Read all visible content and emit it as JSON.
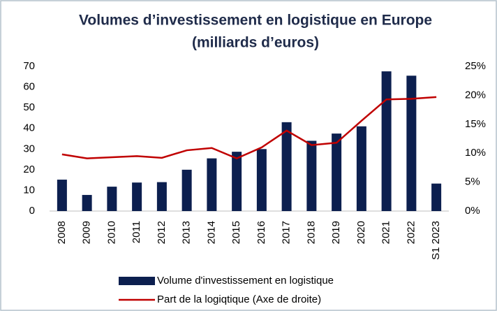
{
  "chart_data": {
    "type": "bar-line",
    "title": [
      "Volumes d’investissement en logistique en Europe",
      "(milliards d’euros)"
    ],
    "categories": [
      "2008",
      "2009",
      "2010",
      "2011",
      "2012",
      "2013",
      "2014",
      "2015",
      "2016",
      "2017",
      "2018",
      "2019",
      "2020",
      "2021",
      "2022",
      "S1 2023"
    ],
    "series": [
      {
        "name": "Volume d'investissement en logistique",
        "type": "bar",
        "color": "#0c1f4f",
        "values": [
          15.2,
          7.8,
          11.8,
          13.8,
          14,
          20,
          25.5,
          28.7,
          30,
          43,
          34,
          37.5,
          41,
          67.6,
          65.5,
          13.3
        ]
      },
      {
        "name": "Part de la logiqtique (Axe de droite)",
        "type": "line",
        "axis": "y2",
        "color": "#c00000",
        "values": [
          9.8,
          9.1,
          9.3,
          9.5,
          9.2,
          10.5,
          10.9,
          9.1,
          11,
          13.9,
          11.4,
          11.8,
          15.6,
          19.3,
          19.4,
          19.7
        ]
      }
    ],
    "ylim": [
      0,
      70
    ],
    "yticks": [
      0,
      10,
      20,
      30,
      40,
      50,
      60,
      70
    ],
    "y2lim": [
      0,
      25
    ],
    "y2ticks": [
      {
        "value": 0,
        "label": "0%"
      },
      {
        "value": 5,
        "label": "5%"
      },
      {
        "value": 10,
        "label": "10%"
      },
      {
        "value": 15,
        "label": "15%"
      },
      {
        "value": 20,
        "label": "20%"
      },
      {
        "value": 25,
        "label": "25%"
      }
    ],
    "grid": false,
    "legend": "bottom"
  }
}
